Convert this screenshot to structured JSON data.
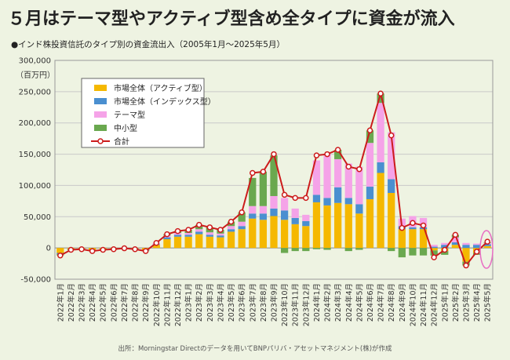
{
  "header": {
    "title": "５月はテーマ型やアクティブ型含め全タイプに資金が流入",
    "subtitle": "●インド株投資信託のタイプ別の資金流出入（2005年1月〜2025年5月）"
  },
  "footer": {
    "source": "出所：Morningstar Directのデータを用いてBNPパリバ・アセットマネジメント(株)が作成"
  },
  "chart_data": {
    "type": "bar",
    "stacked": true,
    "unit_label": "（百万円）",
    "ylim": [
      -50000,
      300000
    ],
    "yticks": [
      "300,000",
      "250,000",
      "200,000",
      "150,000",
      "100,000",
      "50,000",
      "0",
      "-50,000"
    ],
    "categories": [
      "2022年1月",
      "2022年2月",
      "2022年3月",
      "2022年4月",
      "2022年5月",
      "2022年6月",
      "2022年7月",
      "2022年8月",
      "2022年9月",
      "2022年10月",
      "2022年11月",
      "2022年12月",
      "2023年1月",
      "2023年2月",
      "2023年3月",
      "2023年4月",
      "2023年5月",
      "2023年6月",
      "2023年7月",
      "2023年8月",
      "2023年9月",
      "2023年10月",
      "2023年11月",
      "2023年12月",
      "2024年1月",
      "2024年2月",
      "2024年3月",
      "2024年4月",
      "2024年5月",
      "2024年6月",
      "2024年7月",
      "2024年8月",
      "2024年9月",
      "2024年10月",
      "2024年11月",
      "2024年12月",
      "2025年1月",
      "2025年2月",
      "2025年3月",
      "2025年4月",
      "2025年5月"
    ],
    "series": [
      {
        "name": "市場全体（アクティブ型）",
        "color": "#f5b800",
        "values": [
          -8000,
          -2000,
          -1000,
          -3000,
          -2000,
          -1000,
          -500,
          -1000,
          -3000,
          5000,
          14000,
          18000,
          18000,
          22000,
          18000,
          17000,
          26000,
          30000,
          47000,
          45000,
          51000,
          45000,
          38000,
          35000,
          73000,
          68000,
          72000,
          70000,
          55000,
          78000,
          120000,
          88000,
          30000,
          30000,
          30000,
          -4000,
          -5000,
          5000,
          -22000,
          -8000,
          3000
        ]
      },
      {
        "name": "市場全体（インデックス型）",
        "color": "#4a8fd0",
        "values": [
          -2000,
          -500,
          -500,
          -1000,
          -500,
          -500,
          0,
          -500,
          -1000,
          1000,
          3000,
          3000,
          3000,
          4000,
          3000,
          3000,
          4000,
          5000,
          8000,
          10000,
          12000,
          15000,
          10000,
          8000,
          12000,
          12000,
          25000,
          10000,
          15000,
          20000,
          17000,
          22000,
          5000,
          3000,
          3000,
          2000,
          5000,
          4000,
          5000,
          5000,
          3000
        ]
      },
      {
        "name": "テーマ型",
        "color": "#f5a3e8",
        "values": [
          0,
          0,
          0,
          0,
          0,
          0,
          0,
          0,
          0,
          2000,
          3000,
          3000,
          3000,
          4000,
          4000,
          3000,
          5000,
          7000,
          12000,
          12000,
          20000,
          20000,
          15000,
          10000,
          55000,
          70000,
          45000,
          55000,
          60000,
          70000,
          95000,
          75000,
          12000,
          18000,
          15000,
          3000,
          3000,
          8000,
          3000,
          2000,
          2000
        ]
      },
      {
        "name": "中小型",
        "color": "#6aa84f",
        "values": [
          -2000,
          -1000,
          -500,
          -1000,
          -500,
          -500,
          0,
          -500,
          -1000,
          0,
          2000,
          3000,
          5000,
          7000,
          8000,
          6000,
          7000,
          15000,
          45000,
          55000,
          65000,
          -8000,
          -5000,
          -5000,
          -2000,
          -3000,
          15000,
          -5000,
          -3000,
          20000,
          15000,
          -5000,
          -15000,
          -12000,
          -12000,
          -8000,
          -6000,
          4000,
          -6000,
          -3000,
          1000
        ]
      },
      {
        "name": "合計",
        "color": "#cc1b1b",
        "type": "line",
        "values": [
          -12000,
          -3000,
          -2000,
          -5000,
          -3000,
          -2000,
          -500,
          -2000,
          -5000,
          8000,
          22000,
          27000,
          29000,
          37000,
          33000,
          29000,
          42000,
          57000,
          120000,
          122000,
          150000,
          85000,
          80000,
          80000,
          148000,
          150000,
          157000,
          130000,
          126000,
          188000,
          247000,
          180000,
          32000,
          40000,
          36000,
          -15000,
          -3000,
          21000,
          -28000,
          -6000,
          10000
        ]
      }
    ]
  }
}
